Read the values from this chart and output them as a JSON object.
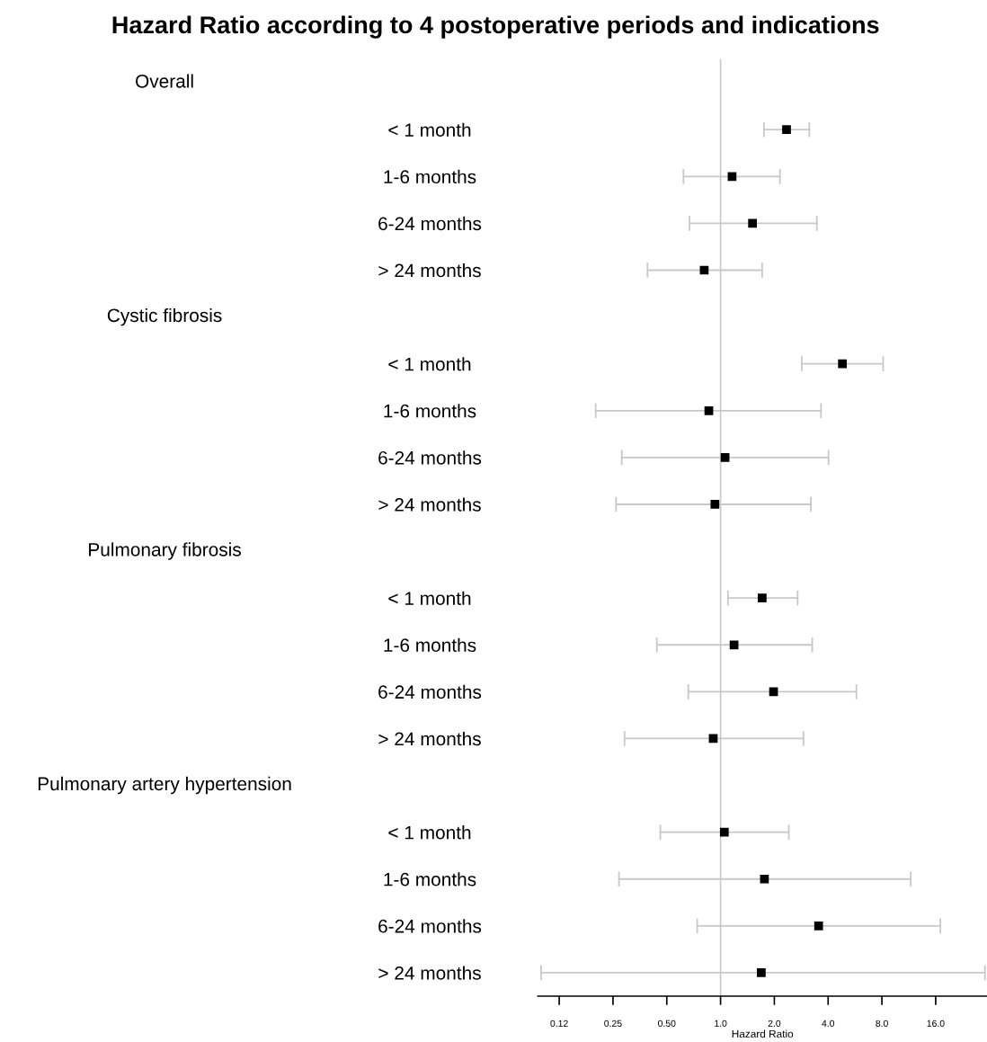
{
  "chart_data": {
    "type": "scatter",
    "title": "Hazard Ratio according to 4 postoperative periods and indications",
    "xlabel": "Hazard Ratio",
    "orientation": "horizontal",
    "categories": [
      null,
      "< 1 month",
      "1-6 months",
      "6-24 months",
      "> 24 months",
      null,
      "< 1 month",
      "1-6 months",
      "6-24 months",
      "> 24 months",
      null,
      "< 1 month",
      "1-6 months",
      "6-24 months",
      "> 24 months",
      null,
      "< 1 month",
      "1-6 months",
      "6-24 months",
      "> 24 months"
    ],
    "annotations": [
      "Overall",
      "Cystic fibrosis",
      "Pulmonary fibrosis",
      "Pulmonary artery hypertension"
    ],
    "series": [
      {
        "color": "#000000",
        "values": [
          null,
          2.34,
          1.16,
          1.51,
          0.81,
          null,
          4.81,
          0.86,
          1.06,
          0.93,
          null,
          1.71,
          1.19,
          1.98,
          0.91,
          null,
          1.05,
          1.76,
          3.54,
          1.69
        ],
        "errors": [
          null,
          [
            1.75,
            3.14
          ],
          [
            0.62,
            2.15
          ],
          [
            0.67,
            3.46
          ],
          [
            0.39,
            1.71
          ],
          null,
          [
            2.85,
            8.13
          ],
          [
            0.2,
            3.65
          ],
          [
            0.28,
            4.02
          ],
          [
            0.26,
            3.2
          ],
          null,
          [
            1.1,
            2.7
          ],
          [
            0.44,
            3.26
          ],
          [
            0.66,
            5.76
          ],
          [
            0.29,
            2.91
          ],
          null,
          [
            0.46,
            2.41
          ],
          [
            0.27,
            11.6
          ],
          [
            0.74,
            17.0
          ],
          [
            0.099,
            30.2
          ]
        ]
      }
    ],
    "log": "x",
    "xlim": [
      0.095,
      31
    ],
    "xticks": [
      {
        "value": 0.125,
        "label": "0.12"
      },
      {
        "value": 0.25,
        "label": "0.25"
      },
      {
        "value": 0.5,
        "label": "0.50"
      },
      {
        "value": 1,
        "label": "1.0"
      },
      {
        "value": 2,
        "label": "2.0"
      },
      {
        "value": 4,
        "label": "4.0"
      },
      {
        "value": 8,
        "label": "8.0"
      },
      {
        "value": 16,
        "label": "16.0"
      }
    ],
    "ref_lines": [
      {
        "axis": "x",
        "value": 1,
        "color": "#c8c8c8"
      }
    ],
    "marker": "square",
    "grid": false,
    "legend": false
  }
}
